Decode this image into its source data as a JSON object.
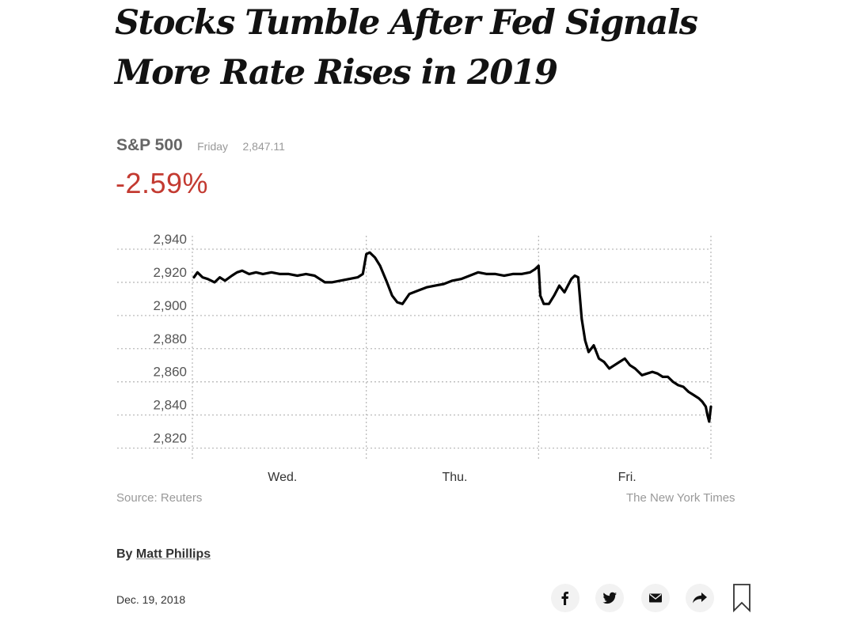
{
  "article": {
    "headline_line1": "Stocks Tumble After Fed Signals",
    "headline_line2": "More Rate Rises in 2019",
    "byline_prefix": "By",
    "author": "Matt Phillips",
    "date": "Dec. 19, 2018"
  },
  "ticker": {
    "name": "S&P 500",
    "day": "Friday",
    "value": "2,847.11",
    "change": "-2.59%"
  },
  "footer": {
    "source": "Source: Reuters",
    "credit": "The New York Times"
  },
  "share_icons": [
    "facebook-icon",
    "twitter-icon",
    "email-icon",
    "share-icon",
    "bookmark-icon"
  ],
  "colors": {
    "negative": "#c33a31",
    "line": "#000000",
    "grid": "#bbbbbb",
    "muted": "#999999"
  },
  "chart_data": {
    "type": "line",
    "title": "",
    "xlabel": "",
    "ylabel": "",
    "ylim": [
      2815,
      2940
    ],
    "yticks": [
      2820,
      2840,
      2860,
      2880,
      2900,
      2920,
      2940
    ],
    "ytick_labels": [
      "2,820",
      "2,840",
      "2,860",
      "2,880",
      "2,900",
      "2,920",
      "2,940"
    ],
    "day_labels": [
      "Wed.",
      "Thu.",
      "Fri."
    ],
    "grid": true,
    "x_units": "trading days (0 = Wed. open, 3 = Fri. close)",
    "series": [
      {
        "points": [
          [
            0.0,
            2923
          ],
          [
            0.02,
            2926
          ],
          [
            0.05,
            2923
          ],
          [
            0.08,
            2922
          ],
          [
            0.12,
            2920
          ],
          [
            0.15,
            2923
          ],
          [
            0.18,
            2921
          ],
          [
            0.22,
            2924
          ],
          [
            0.25,
            2926
          ],
          [
            0.28,
            2927
          ],
          [
            0.32,
            2925
          ],
          [
            0.36,
            2926
          ],
          [
            0.4,
            2925
          ],
          [
            0.45,
            2926
          ],
          [
            0.5,
            2925
          ],
          [
            0.55,
            2925
          ],
          [
            0.6,
            2924
          ],
          [
            0.65,
            2925
          ],
          [
            0.7,
            2924
          ],
          [
            0.73,
            2922
          ],
          [
            0.76,
            2920
          ],
          [
            0.8,
            2920
          ],
          [
            0.85,
            2921
          ],
          [
            0.9,
            2922
          ],
          [
            0.95,
            2923
          ],
          [
            0.98,
            2925
          ],
          [
            1.0,
            2937
          ],
          [
            1.02,
            2938
          ],
          [
            1.05,
            2935
          ],
          [
            1.08,
            2930
          ],
          [
            1.12,
            2920
          ],
          [
            1.15,
            2912
          ],
          [
            1.18,
            2908
          ],
          [
            1.21,
            2907
          ],
          [
            1.25,
            2913
          ],
          [
            1.3,
            2915
          ],
          [
            1.35,
            2917
          ],
          [
            1.4,
            2918
          ],
          [
            1.45,
            2919
          ],
          [
            1.5,
            2921
          ],
          [
            1.55,
            2922
          ],
          [
            1.6,
            2924
          ],
          [
            1.65,
            2926
          ],
          [
            1.7,
            2925
          ],
          [
            1.75,
            2925
          ],
          [
            1.8,
            2924
          ],
          [
            1.85,
            2925
          ],
          [
            1.9,
            2925
          ],
          [
            1.95,
            2926
          ],
          [
            1.98,
            2928
          ],
          [
            2.0,
            2930
          ],
          [
            2.01,
            2912
          ],
          [
            2.03,
            2907
          ],
          [
            2.06,
            2907
          ],
          [
            2.09,
            2912
          ],
          [
            2.12,
            2918
          ],
          [
            2.15,
            2914
          ],
          [
            2.17,
            2918
          ],
          [
            2.19,
            2922
          ],
          [
            2.21,
            2924
          ],
          [
            2.23,
            2923
          ],
          [
            2.25,
            2898
          ],
          [
            2.27,
            2885
          ],
          [
            2.29,
            2878
          ],
          [
            2.32,
            2882
          ],
          [
            2.35,
            2874
          ],
          [
            2.38,
            2872
          ],
          [
            2.41,
            2868
          ],
          [
            2.44,
            2870
          ],
          [
            2.47,
            2872
          ],
          [
            2.5,
            2874
          ],
          [
            2.53,
            2870
          ],
          [
            2.56,
            2868
          ],
          [
            2.6,
            2864
          ],
          [
            2.63,
            2865
          ],
          [
            2.66,
            2866
          ],
          [
            2.69,
            2865
          ],
          [
            2.72,
            2863
          ],
          [
            2.75,
            2863
          ],
          [
            2.78,
            2860
          ],
          [
            2.81,
            2858
          ],
          [
            2.84,
            2857
          ],
          [
            2.87,
            2854
          ],
          [
            2.9,
            2852
          ],
          [
            2.93,
            2850
          ],
          [
            2.95,
            2848
          ],
          [
            2.97,
            2845
          ],
          [
            2.98,
            2840
          ],
          [
            2.99,
            2836
          ],
          [
            3.0,
            2845
          ]
        ]
      }
    ]
  }
}
